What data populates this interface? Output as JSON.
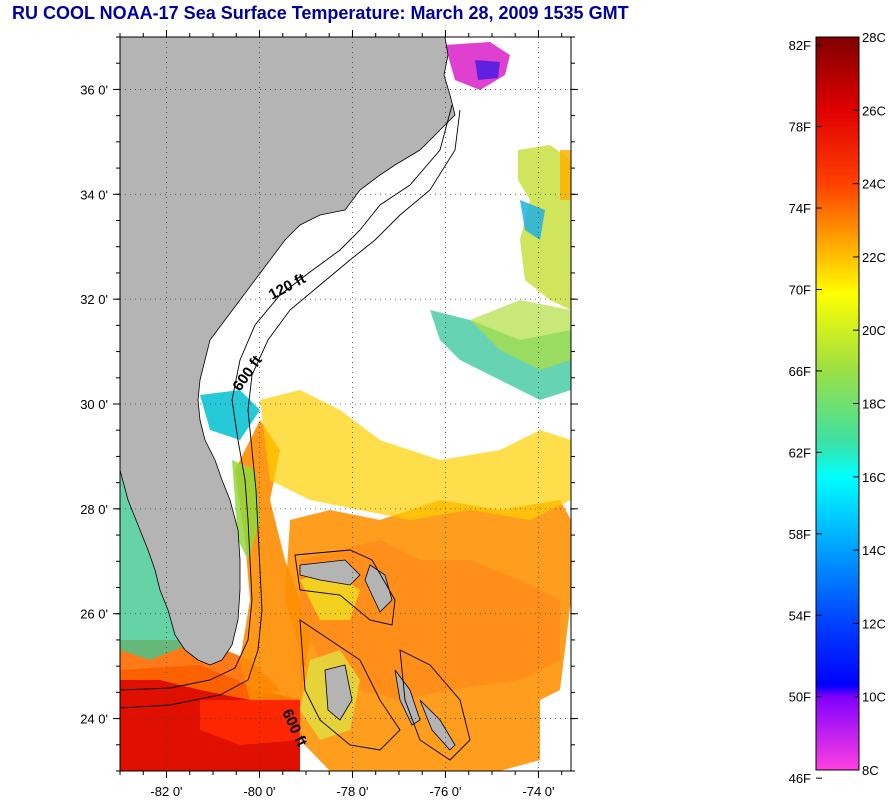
{
  "title": "RU COOL  NOAA-17  Sea Surface Temperature:  March 28, 2009 1535 GMT",
  "map": {
    "lat_labels": [
      "36 0'",
      "34 0'",
      "32 0'",
      "30 0'",
      "28 0'",
      "26 0'",
      "24 0'"
    ],
    "lat_values": [
      36,
      34,
      32,
      30,
      28,
      26,
      24
    ],
    "lon_labels": [
      "-82 0'",
      "-80 0'",
      "-78 0'",
      "-76 0'",
      "-74 0'"
    ],
    "lon_values": [
      -82,
      -80,
      -78,
      -76,
      -74
    ],
    "lat_range": [
      23,
      37
    ],
    "lon_range": [
      -83,
      -73.3
    ],
    "contours": [
      {
        "label": "120 ft"
      },
      {
        "label": "600 ft"
      },
      {
        "label": "600 ft"
      }
    ],
    "colors": {
      "land": "#b4b4b4",
      "ocean_no_data": "#ffffff",
      "contour": "#000000",
      "title": "#0000a0"
    }
  },
  "colorbar": {
    "fahrenheit_labels": [
      "82F",
      "78F",
      "74F",
      "70F",
      "66F",
      "62F",
      "58F",
      "54F",
      "50F",
      "46F"
    ],
    "celsius_labels": [
      "28C",
      "26C",
      "24C",
      "22C",
      "20C",
      "18C",
      "16C",
      "14C",
      "12C",
      "10C",
      "8C"
    ],
    "fahrenheit_values": [
      82,
      78,
      74,
      70,
      66,
      62,
      58,
      54,
      50,
      46
    ],
    "celsius_values": [
      28,
      26,
      24,
      22,
      20,
      18,
      16,
      14,
      12,
      10,
      8
    ],
    "range_celsius": [
      8,
      28
    ],
    "gradient_stops": [
      {
        "c": 28,
        "color": "#7f0000"
      },
      {
        "c": 26,
        "color": "#e00000"
      },
      {
        "c": 24,
        "color": "#ff4000"
      },
      {
        "c": 23,
        "color": "#ff8000"
      },
      {
        "c": 21,
        "color": "#ffff00"
      },
      {
        "c": 19,
        "color": "#a0e040"
      },
      {
        "c": 17,
        "color": "#40e0a0"
      },
      {
        "c": 16,
        "color": "#00ffff"
      },
      {
        "c": 14,
        "color": "#00a0ff"
      },
      {
        "c": 12,
        "color": "#0040ff"
      },
      {
        "c": 10.3,
        "color": "#0000ff"
      },
      {
        "c": 10,
        "color": "#8000ff"
      },
      {
        "c": 8,
        "color": "#ff40e0"
      }
    ]
  }
}
